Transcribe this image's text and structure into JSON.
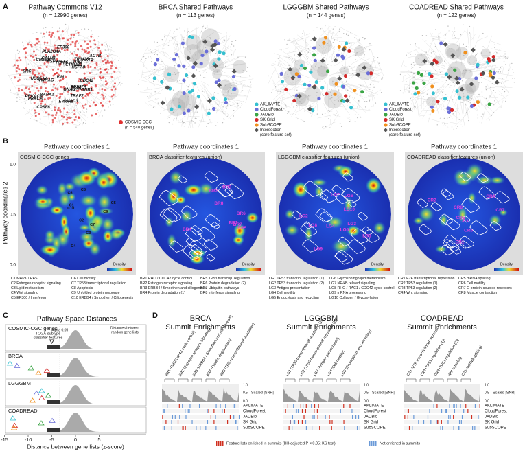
{
  "panel_a": {
    "label": "A",
    "networks": [
      {
        "title": "Pathway Commons V12",
        "subtitle": "(n = 12990 genes)"
      },
      {
        "title": "BRCA Shared Pathways",
        "subtitle": "(n = 113 genes)"
      },
      {
        "title": "LGGGBM Shared Pathways",
        "subtitle": "(n = 144 genes)"
      },
      {
        "title": "COADREAD Shared Pathways",
        "subtitle": "(n = 122 genes)"
      }
    ],
    "genes": [
      "CPSF6",
      "MAPK1",
      "HSP90AA1",
      "PLA2G4A",
      "GNAI2",
      "AKT1",
      "CDC42",
      "TUFM",
      "TRAF2",
      "CALM1",
      "GNB1",
      "RPS27A",
      "UBQLN4",
      "CTNNB1",
      "SRC",
      "ESR1",
      "EWSR1",
      "PRKCA",
      "HSPA8",
      "VIM",
      "ACTB",
      "TRIM28",
      "TP53",
      "CREBBP",
      "EP300",
      "SMAD3",
      "PRKACA",
      "YWHAG"
    ],
    "cgc_legend": [
      "COSMIC CGC",
      "(n = 540 genes)"
    ],
    "legend": [
      {
        "name": "AKLIMATE",
        "color": "#35c0d0"
      },
      {
        "name": "CloudForest",
        "color": "#6b6fd8"
      },
      {
        "name": "JADBio",
        "color": "#3aa444"
      },
      {
        "name": "SK Grid",
        "color": "#d42a2a"
      },
      {
        "name": "SubSCOPE",
        "color": "#f0901e"
      }
    ],
    "intersection": [
      "Intersection",
      "(core feature set)"
    ]
  },
  "panel_b": {
    "label": "B",
    "y_label": "Pathway coordinates 2",
    "y_ticks": [
      "1.0",
      "0.5",
      "0.0"
    ],
    "density_label": "Density",
    "maps": [
      {
        "x_label": "Pathway coordinates 1",
        "title": "COSMIC-CGC genes",
        "clusters": [
          {
            "id": "C1",
            "name": "MAPK / RAS"
          },
          {
            "id": "C2",
            "name": "Estrogen receptor signaling"
          },
          {
            "id": "C3",
            "name": "Lipid metabolism"
          },
          {
            "id": "C4",
            "name": "Wnt signaling"
          },
          {
            "id": "C5",
            "name": "EP300 / Interferon"
          },
          {
            "id": "C6",
            "name": "Cell motility"
          },
          {
            "id": "C7",
            "name": "TP53 transcriptional regulation"
          },
          {
            "id": "C8",
            "name": "Apoptosis"
          },
          {
            "id": "C9",
            "name": "Unfolded protein response"
          },
          {
            "id": "C10",
            "name": "ERBB4 / Smoothen / Ciliogenesis"
          }
        ]
      },
      {
        "x_label": "Pathway coordinates 1",
        "title": "BRCA classifier features (union)",
        "clusters": [
          {
            "id": "BR1",
            "name": "RHO / CDC42 cycle control"
          },
          {
            "id": "BR2",
            "name": "Estrogen receptor signaling"
          },
          {
            "id": "BR3",
            "name": "ERBB4 / Smoothen and ciliogenesis"
          },
          {
            "id": "BR4",
            "name": "Protein degradation (1)"
          },
          {
            "id": "BR5",
            "name": "TP53 transcrip. regulation"
          },
          {
            "id": "BR6",
            "name": "Protein degradation (2)"
          },
          {
            "id": "BR7",
            "name": "Ubiquitin pathways"
          },
          {
            "id": "BR8",
            "name": "Interferon signaling"
          }
        ]
      },
      {
        "x_label": "Pathway coordinates 1",
        "title": "LGGGBM classifier features (union)",
        "clusters": [
          {
            "id": "LG1",
            "name": "TP53 transcrip. regulation (1)"
          },
          {
            "id": "LG2",
            "name": "TP53 transcrip. regulation (2)"
          },
          {
            "id": "LG3",
            "name": "Antigen presentation"
          },
          {
            "id": "LG4",
            "name": "Cell motility"
          },
          {
            "id": "LG5",
            "name": "Endocytosis and recycling"
          },
          {
            "id": "LG6",
            "name": "Glycosphingolipid metabolism"
          },
          {
            "id": "LG7",
            "name": "NF-kB related signaling"
          },
          {
            "id": "LG8",
            "name": "RHO / RAC1 / CDC42 cycle control"
          },
          {
            "id": "LG9",
            "name": "mRNA processing"
          },
          {
            "id": "LG10",
            "name": "Collagen / Glycosylation"
          }
        ]
      },
      {
        "x_label": "Pathway coordinates 1",
        "title": "COADREAD classifier features (union)",
        "clusters": [
          {
            "id": "CR1",
            "name": "E2F transcriptional repression"
          },
          {
            "id": "CR2",
            "name": "TP53 regulation (1)"
          },
          {
            "id": "CR3",
            "name": "TP53 regulation (2)"
          },
          {
            "id": "CR4",
            "name": "Wnt signaling"
          },
          {
            "id": "CR5",
            "name": "mRNA splicing"
          },
          {
            "id": "CR6",
            "name": "Cell motility"
          },
          {
            "id": "CR7",
            "name": "G protein-coupled receptors"
          },
          {
            "id": "CR8",
            "name": "Muscle contraction"
          }
        ]
      }
    ]
  },
  "panel_c": {
    "label": "C",
    "title": "Pathway Space Distances",
    "rows": [
      "COSMIC-CGC genes",
      "BRCA",
      "LGGGBM",
      "COADREAD"
    ],
    "annotations": {
      "classifier": [
        "TCGA-subtype",
        "classifier features"
      ],
      "alpha": "Alpha 0.05",
      "random": [
        "Distances between",
        "random gene lists"
      ]
    },
    "xticks": [
      -15,
      -10,
      -5,
      0,
      5
    ],
    "x_label": "Distance between gene lists (z-score)"
  },
  "panel_d": {
    "label": "D",
    "snr_label": "Scaled |SNR|",
    "snr_ticks": [
      "1.0",
      "0.5",
      "0.0"
    ],
    "blocks": [
      {
        "title": "BRCA",
        "subtitle": "Summit Enrichments",
        "summits": [
          "BR1 (RHO/Cdc42 cycle control)",
          "BR2 (Estrogen receptor signaling)",
          "BR3 (ERBB4 / Smoothen and ciliogenesis)",
          "BR4 (Protein degradation)",
          "BR5 (TP53 transcriptional regulation)"
        ]
      },
      {
        "title": "LGGGBM",
        "subtitle": "Summit Enrichments",
        "summits": [
          "LG1 (TP53 transcriptional regulation (1))",
          "LG2 (TP53 transcriptional regulation (2))",
          "LG3 (Antigen presentation)",
          "LG4 (Cell motility)",
          "LG5 (Endocytosis and recycling)"
        ]
      },
      {
        "title": "COADREAD",
        "subtitle": "Summit Enrichments",
        "summits": [
          "CR1 (E2F transcriptional repression)",
          "CR2 (TP53 regulation (1))",
          "CR3 (TP53 regulation (2))",
          "Wnt signaling",
          "CR5 (mRNA splicing)"
        ]
      }
    ],
    "methods": [
      "AKLIMATE",
      "CloudForest",
      "JADBio",
      "SK Grid",
      "SubSCOPE"
    ],
    "enriched": "Feature lists enriched in summits (BH-adjusted P < 0.05; KS test)",
    "not_enriched": "Not enriched in summits"
  }
}
